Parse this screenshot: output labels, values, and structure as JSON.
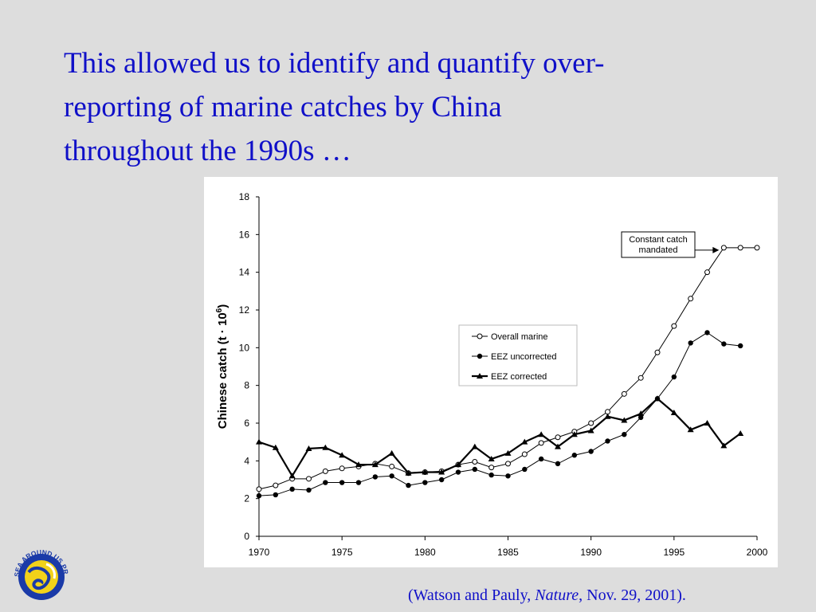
{
  "slide": {
    "title_lines": [
      "This allowed us to identify and quantify over-",
      "reporting of marine catches by China",
      "throughout the 1990s …"
    ],
    "citation": {
      "before": "(Watson and Pauly, ",
      "journal": "Nature",
      "after": ", Nov. 29, 2001)."
    },
    "logo_text": "SEA AROUND US PROJECT",
    "title_color": "#1010c8",
    "background_color": "#dddddd"
  },
  "chart_data": {
    "type": "line",
    "title": "",
    "xlabel": "",
    "ylabel": "Chinese  catch (t · 10",
    "ylabel_superscript": "6",
    "ylabel_suffix": ")",
    "xlim": [
      1970,
      2000
    ],
    "ylim": [
      0,
      18
    ],
    "xticks": [
      1970,
      1975,
      1980,
      1985,
      1990,
      1995,
      2000
    ],
    "yticks": [
      0,
      2,
      4,
      6,
      8,
      10,
      12,
      14,
      16,
      18
    ],
    "grid": false,
    "legend_position": "center-right",
    "annotation": {
      "lines": [
        "Constant catch",
        "mandated"
      ],
      "points_to": [
        1998,
        15.3
      ]
    },
    "series": [
      {
        "name": "Overall marine",
        "marker": "open-circle",
        "x": [
          1970,
          1971,
          1972,
          1973,
          1974,
          1975,
          1976,
          1977,
          1978,
          1979,
          1980,
          1981,
          1982,
          1983,
          1984,
          1985,
          1986,
          1987,
          1988,
          1989,
          1990,
          1991,
          1992,
          1993,
          1994,
          1995,
          1996,
          1997,
          1998,
          1999,
          2000
        ],
        "values": [
          2.5,
          2.7,
          3.05,
          3.05,
          3.45,
          3.6,
          3.7,
          3.85,
          3.7,
          3.35,
          3.4,
          3.45,
          3.8,
          3.95,
          3.65,
          3.85,
          4.35,
          4.95,
          5.25,
          5.55,
          6.0,
          6.6,
          7.55,
          8.4,
          9.75,
          11.15,
          12.6,
          14.0,
          15.3,
          15.3,
          15.3
        ]
      },
      {
        "name": "EEZ uncorrected",
        "marker": "filled-circle",
        "x": [
          1970,
          1971,
          1972,
          1973,
          1974,
          1975,
          1976,
          1977,
          1978,
          1979,
          1980,
          1981,
          1982,
          1983,
          1984,
          1985,
          1986,
          1987,
          1988,
          1989,
          1990,
          1991,
          1992,
          1993,
          1994,
          1995,
          1996,
          1997,
          1998,
          1999
        ],
        "values": [
          2.15,
          2.2,
          2.5,
          2.45,
          2.85,
          2.85,
          2.85,
          3.15,
          3.2,
          2.7,
          2.85,
          3.0,
          3.4,
          3.55,
          3.25,
          3.2,
          3.55,
          4.1,
          3.85,
          4.3,
          4.5,
          5.05,
          5.4,
          6.3,
          7.3,
          8.45,
          10.25,
          10.8,
          10.2,
          10.1
        ]
      },
      {
        "name": "EEZ corrected",
        "marker": "filled-triangle",
        "x": [
          1970,
          1971,
          1972,
          1973,
          1974,
          1975,
          1976,
          1977,
          1978,
          1979,
          1980,
          1981,
          1982,
          1983,
          1984,
          1985,
          1986,
          1987,
          1988,
          1989,
          1990,
          1991,
          1992,
          1993,
          1994,
          1995,
          1996,
          1997,
          1998,
          1999
        ],
        "values": [
          5.0,
          4.7,
          3.2,
          4.65,
          4.7,
          4.3,
          3.8,
          3.8,
          4.4,
          3.35,
          3.4,
          3.4,
          3.8,
          4.75,
          4.1,
          4.4,
          5.0,
          5.4,
          4.75,
          5.4,
          5.6,
          6.35,
          6.15,
          6.5,
          7.3,
          6.55,
          5.65,
          6.0,
          4.8,
          5.45
        ]
      }
    ]
  }
}
